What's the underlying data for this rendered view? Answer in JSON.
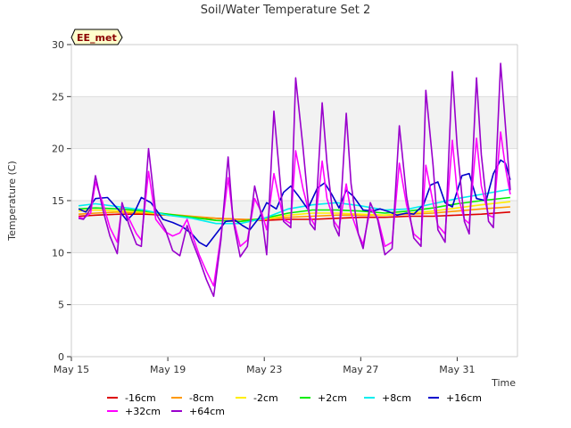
{
  "chart_data": {
    "type": "line",
    "title": "Soil/Water Temperature Set 2",
    "xlabel": "Time",
    "ylabel": "Temperature (C)",
    "badge": "EE_met",
    "xlim": [
      15,
      33.5
    ],
    "ylim": [
      0,
      30
    ],
    "xticks": [
      {
        "x": 15,
        "label": "May 15"
      },
      {
        "x": 19,
        "label": "May 19"
      },
      {
        "x": 23,
        "label": "May 23"
      },
      {
        "x": 27,
        "label": "May 27"
      },
      {
        "x": 31,
        "label": "May 31"
      }
    ],
    "yticks": [
      0,
      5,
      10,
      15,
      20,
      25,
      30
    ],
    "bands": [
      [
        10,
        15
      ],
      [
        20,
        25
      ]
    ],
    "band_color": "#f2f2f2",
    "series": [
      {
        "name": "-16cm",
        "color": "#dd0000",
        "x": [
          15.3,
          16,
          17,
          18,
          19,
          20,
          21,
          22,
          23,
          24,
          25,
          26,
          27,
          28,
          29,
          30,
          31,
          32,
          33.2
        ],
        "y": [
          13.5,
          13.6,
          13.7,
          13.7,
          13.6,
          13.4,
          13.3,
          13.2,
          13.1,
          13.2,
          13.2,
          13.3,
          13.4,
          13.4,
          13.5,
          13.5,
          13.6,
          13.7,
          13.9
        ]
      },
      {
        "name": "-8cm",
        "color": "#ff9900",
        "x": [
          15.3,
          16,
          17,
          18,
          19,
          20,
          21,
          22,
          23,
          24,
          25,
          26,
          27,
          28,
          29,
          30,
          31,
          32,
          33.2
        ],
        "y": [
          13.7,
          13.8,
          13.9,
          13.8,
          13.7,
          13.5,
          13.3,
          13.2,
          13.2,
          13.4,
          13.5,
          13.6,
          13.6,
          13.6,
          13.7,
          13.8,
          14.0,
          14.2,
          14.4
        ]
      },
      {
        "name": "-2cm",
        "color": "#ffee00",
        "x": [
          15.3,
          16,
          17,
          18,
          19,
          20,
          21,
          22,
          23,
          24,
          25,
          26,
          27,
          28,
          29,
          30,
          31,
          32,
          33.2
        ],
        "y": [
          14.0,
          14.1,
          14.0,
          13.9,
          13.6,
          13.4,
          13.1,
          13.0,
          13.2,
          13.6,
          13.8,
          13.8,
          13.7,
          13.6,
          13.8,
          14.0,
          14.3,
          14.6,
          14.9
        ]
      },
      {
        "name": "+2cm",
        "color": "#00ee00",
        "x": [
          15.3,
          16,
          17,
          18,
          19,
          20,
          21,
          22,
          23,
          24,
          25,
          26,
          27,
          28,
          29,
          30,
          31,
          32,
          33.2
        ],
        "y": [
          14.2,
          14.3,
          14.2,
          14.0,
          13.7,
          13.4,
          13.1,
          13.0,
          13.3,
          13.8,
          14.1,
          14.1,
          14.0,
          13.8,
          14.0,
          14.3,
          14.7,
          15.0,
          15.3
        ]
      },
      {
        "name": "+8cm",
        "color": "#00eeee",
        "x": [
          15.3,
          16,
          17,
          18,
          19,
          20,
          21,
          22,
          23,
          24,
          25,
          26,
          27,
          28,
          29,
          30,
          31,
          32,
          33.2
        ],
        "y": [
          14.5,
          14.7,
          14.4,
          14.1,
          13.6,
          13.3,
          12.8,
          12.8,
          13.3,
          14.2,
          14.6,
          14.8,
          14.5,
          14.1,
          14.2,
          14.7,
          15.2,
          15.6,
          16.1
        ]
      },
      {
        "name": "+16cm",
        "color": "#0000cc",
        "x": [
          15.3,
          15.6,
          16,
          16.5,
          17,
          17.3,
          17.6,
          17.9,
          18.3,
          18.8,
          19.2,
          19.6,
          20,
          20.3,
          20.6,
          21,
          21.4,
          21.8,
          22.1,
          22.4,
          22.8,
          23.1,
          23.5,
          23.8,
          24.1,
          24.4,
          24.8,
          25.2,
          25.5,
          25.8,
          26.1,
          26.4,
          26.7,
          27.1,
          27.5,
          27.8,
          28.2,
          28.5,
          28.9,
          29.2,
          29.6,
          29.9,
          30.2,
          30.5,
          30.8,
          31.2,
          31.5,
          31.8,
          32.2,
          32.5,
          32.8,
          33.0,
          33.2
        ],
        "y": [
          14.2,
          13.9,
          15.2,
          15.3,
          14.0,
          13.1,
          13.8,
          15.3,
          14.8,
          13.2,
          12.9,
          12.5,
          11.8,
          11.0,
          10.6,
          11.8,
          13.0,
          13.1,
          12.6,
          12.2,
          13.4,
          14.8,
          14.2,
          15.8,
          16.4,
          15.5,
          14.2,
          16.2,
          16.7,
          15.6,
          14.3,
          16.0,
          15.4,
          14.1,
          14.0,
          14.2,
          13.9,
          13.6,
          13.8,
          13.7,
          14.6,
          16.5,
          16.8,
          14.8,
          14.4,
          17.4,
          17.6,
          15.2,
          15.0,
          17.6,
          18.9,
          18.6,
          17.0
        ]
      },
      {
        "name": "+32cm",
        "color": "#ff00ff",
        "x": [
          15.3,
          15.5,
          15.8,
          16.0,
          16.3,
          16.6,
          16.9,
          17.1,
          17.4,
          17.7,
          17.9,
          18.2,
          18.5,
          18.9,
          19.2,
          19.5,
          19.8,
          20.0,
          20.3,
          20.6,
          20.9,
          21.2,
          21.5,
          21.7,
          22.0,
          22.3,
          22.6,
          22.9,
          23.1,
          23.4,
          23.6,
          23.8,
          24.1,
          24.3,
          24.6,
          24.9,
          25.1,
          25.4,
          25.6,
          25.9,
          26.1,
          26.4,
          26.6,
          26.9,
          27.1,
          27.4,
          27.7,
          28.0,
          28.3,
          28.6,
          28.9,
          29.2,
          29.5,
          29.7,
          30.0,
          30.2,
          30.5,
          30.8,
          31.0,
          31.3,
          31.5,
          31.8,
          32.0,
          32.3,
          32.5,
          32.8,
          33.0,
          33.2
        ],
        "y": [
          13.4,
          13.3,
          13.8,
          16.8,
          14.8,
          12.4,
          11.0,
          14.5,
          13.2,
          11.8,
          11.2,
          17.8,
          13.2,
          12.0,
          11.6,
          11.9,
          13.2,
          11.8,
          9.8,
          8.2,
          6.8,
          11.6,
          17.2,
          13.4,
          10.6,
          11.2,
          15.2,
          13.8,
          12.2,
          17.6,
          15.4,
          13.2,
          12.8,
          19.8,
          16.2,
          13.4,
          12.6,
          18.8,
          15.2,
          13.0,
          12.3,
          16.6,
          13.8,
          11.8,
          10.8,
          14.2,
          13.4,
          10.6,
          11.0,
          18.6,
          14.6,
          11.8,
          11.2,
          18.4,
          14.8,
          12.6,
          11.8,
          20.8,
          15.8,
          13.2,
          12.8,
          21.0,
          16.4,
          13.6,
          13.4,
          21.6,
          18.2,
          15.6
        ]
      },
      {
        "name": "+64cm",
        "color": "#9900cc",
        "x": [
          15.3,
          15.5,
          15.8,
          16.0,
          16.3,
          16.6,
          16.9,
          17.1,
          17.4,
          17.7,
          17.9,
          18.2,
          18.5,
          18.9,
          19.2,
          19.5,
          19.8,
          20.0,
          20.3,
          20.6,
          20.9,
          21.2,
          21.5,
          21.7,
          22.0,
          22.3,
          22.6,
          22.9,
          23.1,
          23.4,
          23.6,
          23.8,
          24.1,
          24.3,
          24.6,
          24.9,
          25.1,
          25.4,
          25.6,
          25.9,
          26.1,
          26.4,
          26.6,
          26.9,
          27.1,
          27.4,
          27.7,
          28.0,
          28.3,
          28.6,
          28.9,
          29.2,
          29.5,
          29.7,
          30.0,
          30.2,
          30.5,
          30.8,
          31.0,
          31.3,
          31.5,
          31.8,
          32.0,
          32.3,
          32.5,
          32.8,
          33.0,
          33.2
        ],
        "y": [
          13.3,
          13.2,
          14.2,
          17.4,
          14.2,
          11.6,
          9.9,
          14.8,
          12.6,
          10.8,
          10.6,
          20.0,
          13.8,
          12.2,
          10.2,
          9.7,
          12.6,
          11.2,
          9.4,
          7.4,
          5.8,
          11.2,
          19.2,
          13.2,
          9.6,
          10.6,
          16.4,
          13.4,
          9.8,
          23.6,
          18.4,
          13.0,
          12.4,
          26.8,
          20.2,
          12.8,
          12.2,
          24.4,
          18.6,
          12.6,
          11.6,
          23.4,
          16.6,
          11.8,
          10.4,
          14.8,
          13.2,
          9.8,
          10.4,
          22.2,
          15.4,
          11.4,
          10.6,
          25.6,
          18.4,
          12.2,
          11.0,
          27.4,
          20.2,
          13.0,
          11.8,
          26.8,
          19.4,
          13.0,
          12.4,
          28.2,
          22.2,
          16.0
        ]
      }
    ]
  }
}
